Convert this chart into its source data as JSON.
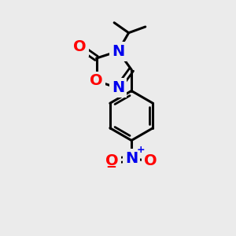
{
  "bg_color": "#ebebeb",
  "bond_color": "#000000",
  "bond_width": 2.2,
  "atom_colors": {
    "O": "#ff0000",
    "N": "#0000ee",
    "C": "#000000"
  },
  "font_size_atom": 14
}
